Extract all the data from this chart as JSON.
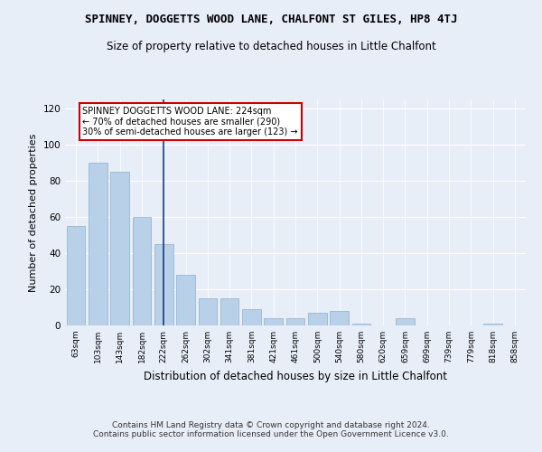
{
  "title": "SPINNEY, DOGGETTS WOOD LANE, CHALFONT ST GILES, HP8 4TJ",
  "subtitle": "Size of property relative to detached houses in Little Chalfont",
  "xlabel": "Distribution of detached houses by size in Little Chalfont",
  "ylabel": "Number of detached properties",
  "categories": [
    "63sqm",
    "103sqm",
    "143sqm",
    "182sqm",
    "222sqm",
    "262sqm",
    "302sqm",
    "341sqm",
    "381sqm",
    "421sqm",
    "461sqm",
    "500sqm",
    "540sqm",
    "580sqm",
    "620sqm",
    "659sqm",
    "699sqm",
    "739sqm",
    "779sqm",
    "818sqm",
    "858sqm"
  ],
  "values": [
    55,
    90,
    85,
    60,
    45,
    28,
    15,
    15,
    9,
    4,
    4,
    7,
    8,
    1,
    0,
    4,
    0,
    0,
    0,
    1,
    0
  ],
  "bar_color": "#b8d0e8",
  "bar_edge_color": "#8aafd0",
  "vline_x": 4,
  "vline_color": "#1a3a7a",
  "annotation_text": "SPINNEY DOGGETTS WOOD LANE: 224sqm\n← 70% of detached houses are smaller (290)\n30% of semi-detached houses are larger (123) →",
  "annotation_box_color": "#ffffff",
  "annotation_box_edge": "#cc0000",
  "ylim": [
    0,
    125
  ],
  "yticks": [
    0,
    20,
    40,
    60,
    80,
    100,
    120
  ],
  "footer": "Contains HM Land Registry data © Crown copyright and database right 2024.\nContains public sector information licensed under the Open Government Licence v3.0.",
  "background_color": "#e8eef8",
  "grid_color": "#ffffff",
  "title_fontsize": 9,
  "subtitle_fontsize": 8.5,
  "xlabel_fontsize": 8.5,
  "ylabel_fontsize": 8
}
